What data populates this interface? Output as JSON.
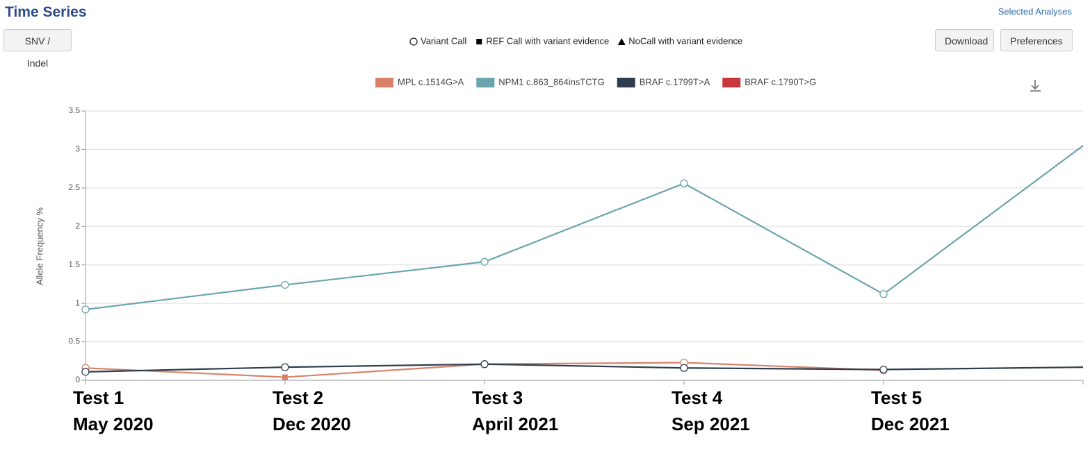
{
  "header": {
    "title": "Time Series",
    "link": "Selected Analyses"
  },
  "toolbar": {
    "filter_button": "SNV / Indel",
    "download_button": "Download",
    "preferences_button": "Preferences"
  },
  "marker_legend": [
    {
      "shape": "circle",
      "label": "Variant Call"
    },
    {
      "shape": "square",
      "label": "REF Call with variant evidence"
    },
    {
      "shape": "triangle",
      "label": "NoCall with variant evidence"
    }
  ],
  "chart_data": {
    "type": "line",
    "y_label": "Allele Frequency %",
    "categories": [
      "Test 1",
      "Test 2",
      "Test 3",
      "Test 4",
      "Test 5",
      null
    ],
    "x_sublabels": [
      "May 2020",
      "Dec 2020",
      "April 2021",
      "Sep 2021",
      "Dec 2021",
      null
    ],
    "ylim": [
      0,
      3.5
    ],
    "yticks": [
      0,
      0.5,
      1,
      1.5,
      2,
      2.5,
      3,
      3.5
    ],
    "grid": true,
    "series": [
      {
        "name": "MPL c.1514G>A",
        "color": "#d9826a",
        "values": [
          0.16,
          0.04,
          0.21,
          0.23,
          0.13,
          null
        ],
        "markers": [
          "circle",
          "square",
          "circle",
          "circle",
          "circle",
          null
        ]
      },
      {
        "name": "NPM1 c.863_864insTCTG",
        "color": "#6aa5ad",
        "values": [
          0.92,
          1.24,
          1.54,
          2.56,
          1.12,
          3.05
        ],
        "markers": [
          "circle",
          "circle",
          "circle",
          "circle",
          "circle",
          null
        ]
      },
      {
        "name": "BRAF c.1799T>A",
        "color": "#2f3e4e",
        "values": [
          0.11,
          0.17,
          0.21,
          0.16,
          0.14,
          0.17
        ],
        "markers": [
          "circle",
          "circle",
          "circle",
          "circle",
          "circle",
          null
        ]
      },
      {
        "name": "BRAF c.1790T>G",
        "color": "#c8383a",
        "values": [
          null,
          null,
          null,
          null,
          null,
          null
        ],
        "markers": [
          null,
          null,
          null,
          null,
          null,
          null
        ]
      }
    ]
  }
}
